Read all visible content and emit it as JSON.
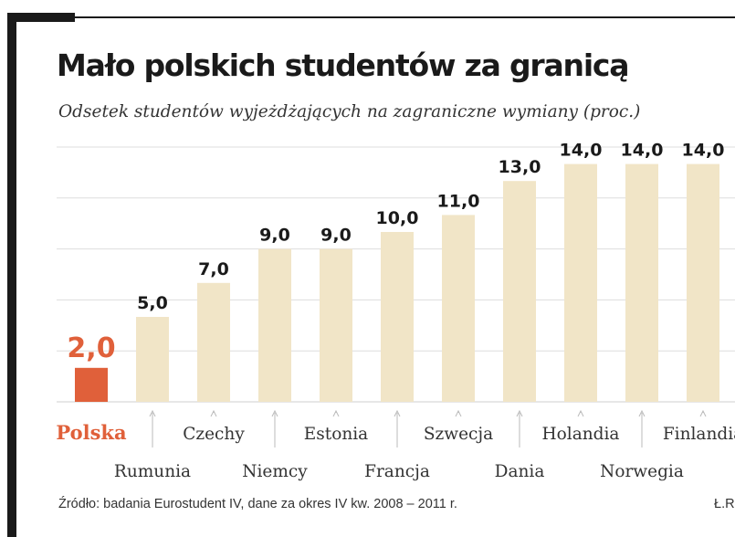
{
  "chart_data": {
    "type": "bar",
    "title": "Mało polskich studentów za granicą",
    "subtitle": "Odsetek studentów wyjeżdżających na zagraniczne wymiany (proc.)",
    "categories": [
      "Polska",
      "Rumunia",
      "Czechy",
      "Niemcy",
      "Estonia",
      "Francja",
      "Szwecja",
      "Dania",
      "Holandia",
      "Norwegia",
      "Finlandia"
    ],
    "values": [
      2.0,
      5.0,
      7.0,
      9.0,
      9.0,
      10.0,
      11.0,
      13.0,
      14.0,
      14.0,
      14.0
    ],
    "value_labels": [
      "2,0",
      "5,0",
      "7,0",
      "9,0",
      "9,0",
      "10,0",
      "11,0",
      "13,0",
      "14,0",
      "14,0",
      "14,0"
    ],
    "highlight_category": "Polska",
    "ylim": [
      0,
      15
    ],
    "grid": true,
    "colors": {
      "bar": "#f1e5c7",
      "highlight": "#e0603a",
      "grid": "#dddddd",
      "text": "#1a1a1a"
    }
  },
  "source_note": "Źródło: badania Eurostudent IV, dane za okres IV kw. 2008 – 2011 r.",
  "credit": "Ł.R"
}
